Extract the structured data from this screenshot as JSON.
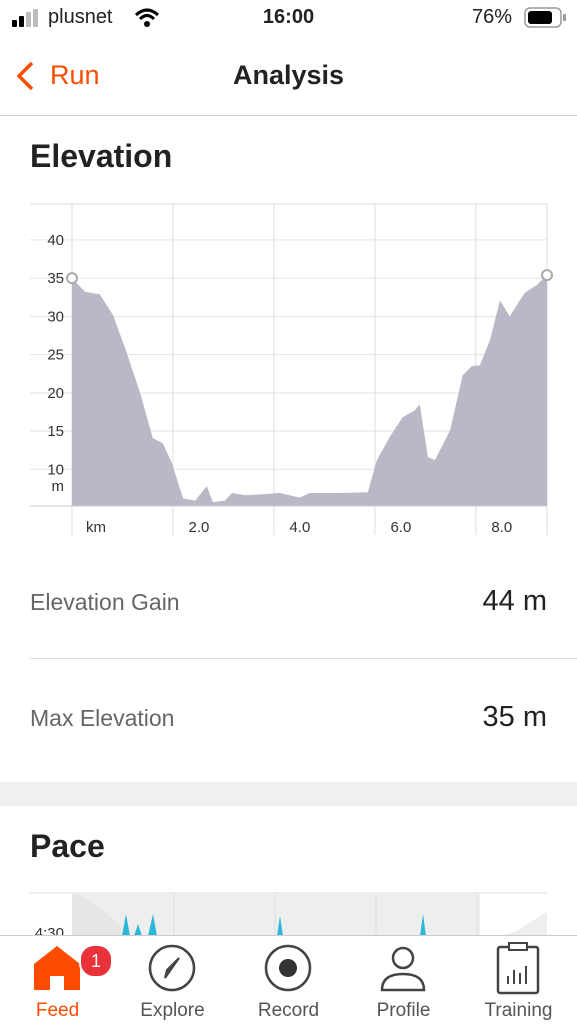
{
  "status_bar": {
    "carrier": "plusnet",
    "time": "16:00",
    "battery": "76%"
  },
  "nav": {
    "back": "Run",
    "title": "Analysis"
  },
  "elevation": {
    "heading": "Elevation",
    "chart_data": {
      "type": "area",
      "x_label": "km",
      "y_label": "m",
      "x": [
        0,
        0.26,
        0.55,
        0.81,
        1.05,
        1.35,
        1.6,
        1.8,
        1.98,
        2.2,
        2.44,
        2.67,
        2.79,
        3.03,
        3.17,
        3.43,
        4.12,
        4.51,
        4.71,
        5.31,
        5.86,
        6.04,
        6.3,
        6.55,
        6.79,
        6.89,
        7.05,
        7.19,
        7.49,
        7.74,
        7.92,
        8.08,
        8.28,
        8.48,
        8.67,
        8.97,
        9.21,
        9.41
      ],
      "values": [
        35,
        33.2,
        32.9,
        30.2,
        25.9,
        20,
        14.1,
        13.4,
        10.8,
        6.2,
        5.9,
        7.8,
        5.7,
        5.9,
        6.9,
        6.6,
        6.9,
        6.3,
        6.9,
        6.9,
        7,
        11.2,
        14.3,
        16.8,
        17.7,
        18.5,
        11.6,
        11.2,
        15.1,
        22.3,
        23.5,
        23.6,
        26.9,
        32.1,
        30,
        33.1,
        34.1,
        35.4
      ],
      "color": "#b9b8c6",
      "xlim": [
        0,
        9.41
      ],
      "ylim": [
        5.2,
        44.7
      ],
      "xticks": [
        {
          "value": 2,
          "label": "2.0"
        },
        {
          "value": 4,
          "label": "4.0"
        },
        {
          "value": 6,
          "label": "6.0"
        },
        {
          "value": 8,
          "label": "8.0"
        }
      ],
      "yticks": [
        10,
        15,
        20,
        25,
        30,
        35,
        40
      ],
      "grid": true
    },
    "stats": [
      {
        "label": "Elevation Gain",
        "value": "44 m"
      },
      {
        "label": "Max Elevation",
        "value": "35 m"
      }
    ]
  },
  "pace": {
    "heading": "Pace",
    "tick_label": "4:30"
  },
  "tab_bar": {
    "tabs": [
      "Feed",
      "Explore",
      "Record",
      "Profile",
      "Training"
    ],
    "badge": "1"
  }
}
